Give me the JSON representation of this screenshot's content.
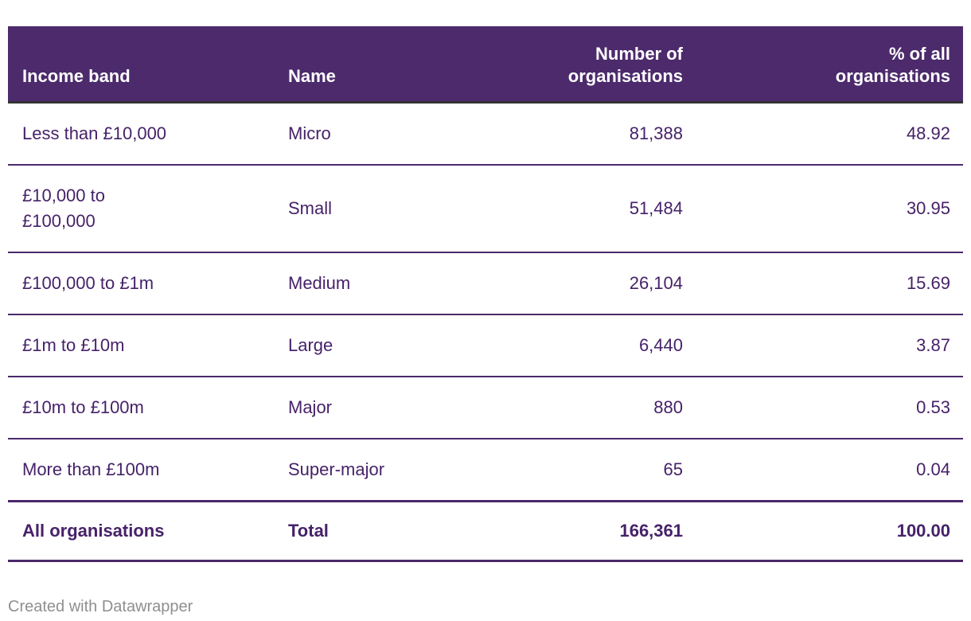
{
  "table": {
    "columns": [
      "Income band",
      "Name",
      "Number of\norganisations",
      "% of all\norganisations"
    ],
    "rows": [
      {
        "band": "Less than £10,000",
        "name": "Micro",
        "count": "81,388",
        "pct": "48.92"
      },
      {
        "band": "£10,000 to\n£100,000",
        "name": "Small",
        "count": "51,484",
        "pct": "30.95"
      },
      {
        "band": "£100,000 to £1m",
        "name": "Medium",
        "count": "26,104",
        "pct": "15.69"
      },
      {
        "band": "£1m to £10m",
        "name": "Large",
        "count": "6,440",
        "pct": "3.87"
      },
      {
        "band": "£10m to £100m",
        "name": "Major",
        "count": "880",
        "pct": "0.53"
      },
      {
        "band": "More than £100m",
        "name": "Super-major",
        "count": "65",
        "pct": "0.04"
      }
    ],
    "total_row": {
      "band": "All organisations",
      "name": "Total",
      "count": "166,361",
      "pct": "100.00"
    }
  },
  "footer": {
    "attribution": "Created with Datawrapper"
  },
  "colors": {
    "header_bg": "#4c2a6c",
    "header_text": "#ffffff",
    "header_border": "#333333",
    "body_text": "#462269",
    "row_border": "#4a296b",
    "footer_text": "#8f8f8f"
  },
  "chart_data": {
    "type": "table",
    "columns": [
      "Income band",
      "Name",
      "Number of organisations",
      "% of all organisations"
    ],
    "rows": [
      [
        "Less than £10,000",
        "Micro",
        81388,
        48.92
      ],
      [
        "£10,000 to £100,000",
        "Small",
        51484,
        30.95
      ],
      [
        "£100,000 to £1m",
        "Medium",
        26104,
        15.69
      ],
      [
        "£1m to £10m",
        "Large",
        6440,
        3.87
      ],
      [
        "£10m to £100m",
        "Major",
        880,
        0.53
      ],
      [
        "More than £100m",
        "Super-major",
        65,
        0.04
      ]
    ],
    "total": [
      "All organisations",
      "Total",
      166361,
      100.0
    ],
    "layout_hints": {
      "header_style": "purple-band-white-bold-text",
      "numeric_columns_right_aligned": true,
      "total_row_bold": true
    }
  }
}
